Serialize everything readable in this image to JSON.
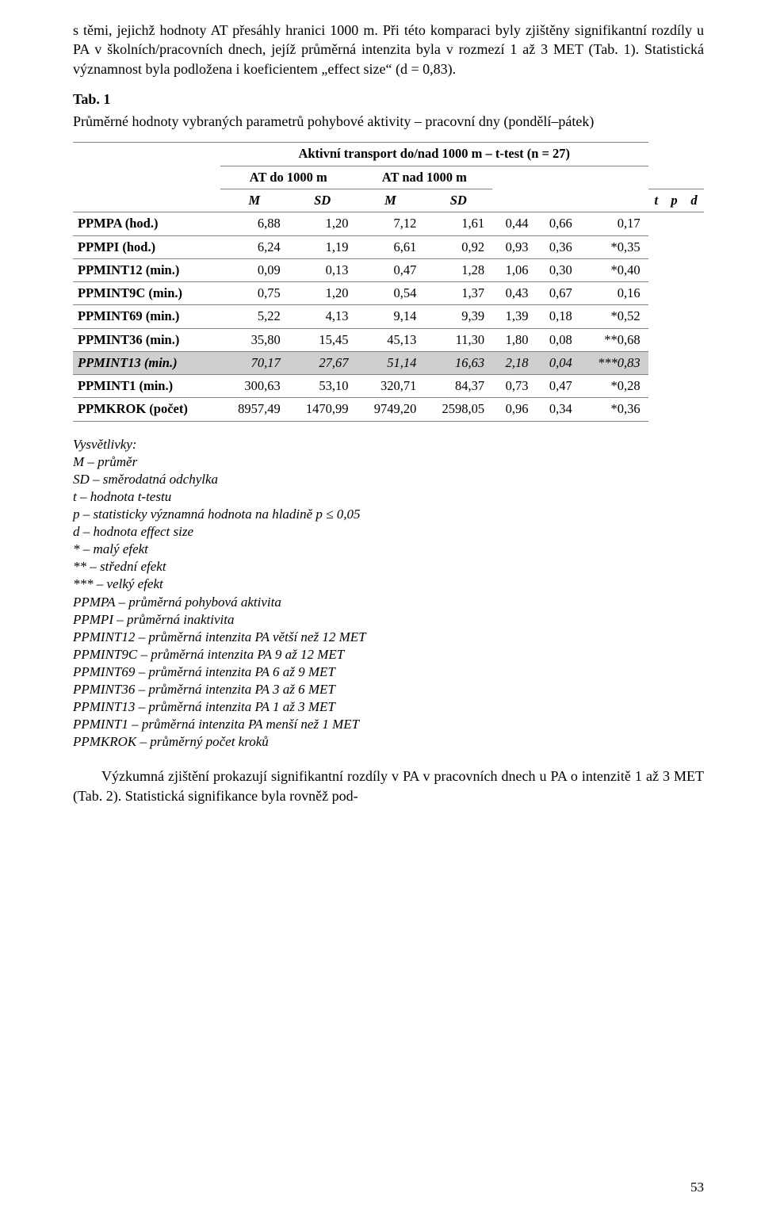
{
  "body": {
    "intro_para": "s těmi, jejichž hodnoty AT přesáhly hranici 1000 m. Při této komparaci byly zjištěny signifikantní rozdíly u PA v školních/pracovních dnech, jejíž průměrná intenzita byla v rozmezí 1 až 3 MET (Tab. 1). Statistická významnost byla podložena i koeficientem „effect size“ (d = 0,83).",
    "table_num": "Tab. 1",
    "table_caption": "Průměrné hodnoty vybraných parametrů pohybové aktivity – pracovní dny (pondělí–pátek)"
  },
  "table": {
    "header": {
      "group_title": "Aktivní transport do/nad 1000 m – t-test (n = 27)",
      "col_at_do": "AT do 1000 m",
      "col_at_nad": "AT nad 1000 m",
      "M": "M",
      "SD": "SD",
      "t": "t",
      "p": "p",
      "d": "d"
    },
    "rows": [
      {
        "label": "PPMPA (hod.)",
        "m1": "6,88",
        "sd1": "1,20",
        "m2": "7,12",
        "sd2": "1,61",
        "t": "0,44",
        "p": "0,66",
        "d": "0,17",
        "hl": false
      },
      {
        "label": "PPMPI (hod.)",
        "m1": "6,24",
        "sd1": "1,19",
        "m2": "6,61",
        "sd2": "0,92",
        "t": "0,93",
        "p": "0,36",
        "d": "*0,35",
        "hl": false
      },
      {
        "label": "PPMINT12 (min.)",
        "m1": "0,09",
        "sd1": "0,13",
        "m2": "0,47",
        "sd2": "1,28",
        "t": "1,06",
        "p": "0,30",
        "d": "*0,40",
        "hl": false
      },
      {
        "label": "PPMINT9C (min.)",
        "m1": "0,75",
        "sd1": "1,20",
        "m2": "0,54",
        "sd2": "1,37",
        "t": "0,43",
        "p": "0,67",
        "d": "0,16",
        "hl": false
      },
      {
        "label": "PPMINT69 (min.)",
        "m1": "5,22",
        "sd1": "4,13",
        "m2": "9,14",
        "sd2": "9,39",
        "t": "1,39",
        "p": "0,18",
        "d": "*0,52",
        "hl": false
      },
      {
        "label": "PPMINT36 (min.)",
        "m1": "35,80",
        "sd1": "15,45",
        "m2": "45,13",
        "sd2": "11,30",
        "t": "1,80",
        "p": "0,08",
        "d": "**0,68",
        "hl": false
      },
      {
        "label": "PPMINT13 (min.)",
        "m1": "70,17",
        "sd1": "27,67",
        "m2": "51,14",
        "sd2": "16,63",
        "t": "2,18",
        "p": "0,04",
        "d": "***0,83",
        "hl": true
      },
      {
        "label": "PPMINT1 (min.)",
        "m1": "300,63",
        "sd1": "53,10",
        "m2": "320,71",
        "sd2": "84,37",
        "t": "0,73",
        "p": "0,47",
        "d": "*0,28",
        "hl": false
      },
      {
        "label": "PPMKROK (počet)",
        "m1": "8957,49",
        "sd1": "1470,99",
        "m2": "9749,20",
        "sd2": "2598,05",
        "t": "0,96",
        "p": "0,34",
        "d": "*0,36",
        "hl": false
      }
    ],
    "styling": {
      "type": "table",
      "border_color": "#838383",
      "highlight_bg": "#cfcfcf",
      "font_size_pt": 12.4,
      "header_font_weight": "bold",
      "label_font_weight": "bold",
      "highlight_italic": true,
      "background_color": "#ffffff",
      "num_align": "right",
      "col_count": 8
    }
  },
  "legend": {
    "lines": [
      "Vysvětlivky:",
      "M – průměr",
      "SD – směrodatná odchylka",
      "t – hodnota t-testu",
      "p – statisticky významná hodnota na hladině p ≤ 0,05",
      "d – hodnota effect size",
      "* – malý efekt",
      "** – střední efekt",
      "*** – velký efekt",
      "PPMPA – průměrná pohybová aktivita",
      "PPMPI – průměrná inaktivita",
      "PPMINT12 – průměrná intenzita PA větší než 12 MET",
      "PPMINT9C – průměrná intenzita PA 9 až 12 MET",
      "PPMINT69 – průměrná intenzita PA 6 až 9 MET",
      "PPMINT36 – průměrná intenzita PA 3 až 6 MET",
      "PPMINT13 – průměrná intenzita PA 1 až 3 MET",
      "PPMINT1 – průměrná intenzita PA menší než 1 MET",
      "PPMKROK – průměrný počet kroků"
    ]
  },
  "footer_para": "Výzkumná zjištění prokazují signifikantní rozdíly v PA v pracovních dnech u PA o intenzitě 1 až 3 MET (Tab. 2). Statistická signifikance byla rovněž pod-",
  "page_number": "53"
}
